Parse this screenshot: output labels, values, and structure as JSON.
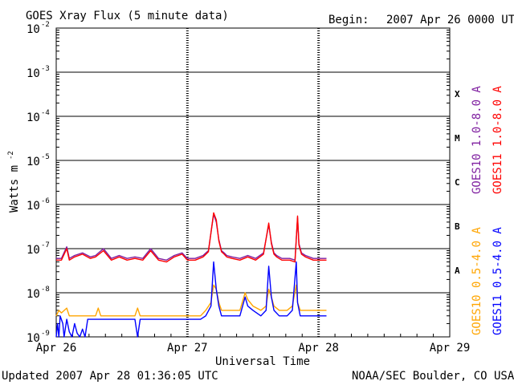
{
  "header": {
    "title": "GOES Xray Flux (5 minute data)",
    "begin_label": "Begin:",
    "begin_value": "2007 Apr 26 0000 UTC"
  },
  "footer": {
    "updated": "Updated 2007 Apr 28 01:36:05 UTC",
    "credit": "NOAA/SEC Boulder, CO USA"
  },
  "colors": {
    "goes10_long": "#7f1fa0",
    "goes11_long": "#ff0000",
    "goes10_short": "#ffa500",
    "goes11_short": "#0000ff"
  },
  "chart_data": {
    "type": "line",
    "title": "GOES Xray Flux (5 minute data)",
    "xlabel": "Universal Time",
    "ylabel": "Watts m",
    "ylabel_superscript": "-2",
    "yscale": "log",
    "ylim": [
      1e-09,
      0.01
    ],
    "xlim": [
      "Apr 26",
      "Apr 29"
    ],
    "x_ticks": [
      "Apr 26",
      "Apr 27",
      "Apr 28",
      "Apr 29"
    ],
    "y_ticks": [
      {
        "base": "10",
        "exp": "-9",
        "value": 1e-09
      },
      {
        "base": "10",
        "exp": "-8",
        "value": 1e-08
      },
      {
        "base": "10",
        "exp": "-7",
        "value": 1e-07
      },
      {
        "base": "10",
        "exp": "-6",
        "value": 1e-06
      },
      {
        "base": "10",
        "exp": "-5",
        "value": 1e-05
      },
      {
        "base": "10",
        "exp": "-4",
        "value": 0.0001
      },
      {
        "base": "10",
        "exp": "-3",
        "value": 0.001
      },
      {
        "base": "10",
        "exp": "-2",
        "value": 0.01
      }
    ],
    "flare_classes": [
      {
        "label": "X",
        "value": 0.00032
      },
      {
        "label": "M",
        "value": 3.2e-05
      },
      {
        "label": "C",
        "value": 3.2e-06
      },
      {
        "label": "B",
        "value": 3.2e-07
      },
      {
        "label": "A",
        "value": 3.2e-08
      }
    ],
    "grid": "horizontal decades, dashed vertical at day boundaries",
    "series": [
      {
        "name": "GOES10 1.0-8.0 A",
        "color": "#7f1fa0",
        "x_days": [
          0.0,
          0.04,
          0.08,
          0.1,
          0.14,
          0.2,
          0.26,
          0.3,
          0.36,
          0.42,
          0.48,
          0.54,
          0.6,
          0.66,
          0.72,
          0.78,
          0.84,
          0.9,
          0.96,
          1.0,
          1.06,
          1.12,
          1.16,
          1.2,
          1.22,
          1.24,
          1.26,
          1.28,
          1.3,
          1.34,
          1.4,
          1.46,
          1.52,
          1.58,
          1.62,
          1.64,
          1.66,
          1.68,
          1.72,
          1.78,
          1.82,
          1.84,
          1.85,
          1.87,
          1.9,
          1.96,
          2.06
        ],
        "values": [
          6e-08,
          6e-08,
          1.1e-07,
          6e-08,
          7e-08,
          8e-08,
          6.5e-08,
          7e-08,
          1e-07,
          6e-08,
          7e-08,
          6e-08,
          6.5e-08,
          6e-08,
          1e-07,
          6e-08,
          5.5e-08,
          7e-08,
          8e-08,
          6e-08,
          6e-08,
          7e-08,
          9e-08,
          6e-07,
          4e-07,
          1.6e-07,
          9e-08,
          8e-08,
          7e-08,
          6.5e-08,
          6e-08,
          7e-08,
          6e-08,
          8e-08,
          3.5e-07,
          1.4e-07,
          8e-08,
          7e-08,
          6e-08,
          6e-08,
          5.5e-08,
          5e-07,
          1.3e-07,
          8e-08,
          7e-08,
          6e-08,
          6e-08
        ]
      },
      {
        "name": "GOES11 1.0-8.0 A",
        "color": "#ff0000",
        "x_days": [
          0.0,
          0.04,
          0.08,
          0.1,
          0.14,
          0.2,
          0.26,
          0.3,
          0.36,
          0.42,
          0.48,
          0.54,
          0.6,
          0.66,
          0.72,
          0.78,
          0.84,
          0.9,
          0.96,
          1.0,
          1.06,
          1.12,
          1.16,
          1.2,
          1.22,
          1.24,
          1.26,
          1.28,
          1.3,
          1.34,
          1.4,
          1.46,
          1.52,
          1.58,
          1.62,
          1.64,
          1.66,
          1.68,
          1.72,
          1.78,
          1.82,
          1.84,
          1.85,
          1.87,
          1.9,
          1.96,
          2.06
        ],
        "values": [
          5.5e-08,
          5.5e-08,
          1e-07,
          5.5e-08,
          6.5e-08,
          7.5e-08,
          6e-08,
          6.5e-08,
          9e-08,
          5.5e-08,
          6.5e-08,
          5.5e-08,
          6e-08,
          5.5e-08,
          9e-08,
          5.5e-08,
          5e-08,
          6.5e-08,
          7.5e-08,
          5.5e-08,
          5.5e-08,
          6.5e-08,
          8.5e-08,
          6.5e-07,
          4.5e-07,
          1.5e-07,
          8.5e-08,
          7.5e-08,
          6.5e-08,
          6e-08,
          5.5e-08,
          6.5e-08,
          5.5e-08,
          7.5e-08,
          3.8e-07,
          1.3e-07,
          7.5e-08,
          6.5e-08,
          5.5e-08,
          5.5e-08,
          5e-08,
          5.5e-07,
          1.2e-07,
          7.5e-08,
          6.5e-08,
          5.5e-08,
          5.5e-08
        ]
      },
      {
        "name": "GOES10 0.5-4.0 A",
        "color": "#ffa500",
        "x_days": [
          0.0,
          0.02,
          0.04,
          0.08,
          0.1,
          0.16,
          0.3,
          0.32,
          0.34,
          0.6,
          0.62,
          0.64,
          0.9,
          1.0,
          1.1,
          1.14,
          1.18,
          1.2,
          1.22,
          1.24,
          1.26,
          1.3,
          1.4,
          1.44,
          1.46,
          1.5,
          1.56,
          1.6,
          1.62,
          1.64,
          1.66,
          1.7,
          1.76,
          1.8,
          1.83,
          1.84,
          1.86,
          1.9,
          1.96,
          2.06
        ],
        "values": [
          3e-09,
          4e-09,
          3.5e-09,
          4.5e-09,
          3e-09,
          3e-09,
          3e-09,
          4.5e-09,
          3e-09,
          3e-09,
          4.5e-09,
          3e-09,
          3e-09,
          3e-09,
          3e-09,
          4e-09,
          6e-09,
          1.5e-08,
          1.2e-08,
          6e-09,
          4e-09,
          4e-09,
          4e-09,
          1e-08,
          7e-09,
          5e-09,
          4e-09,
          5e-09,
          1.2e-08,
          8e-09,
          5e-09,
          4e-09,
          4e-09,
          5e-09,
          1.5e-08,
          6e-09,
          4e-09,
          4e-09,
          4e-09,
          4e-09
        ]
      },
      {
        "name": "GOES11 0.5-4.0 A",
        "color": "#0000ff",
        "x_days": [
          0.0,
          0.01,
          0.02,
          0.03,
          0.05,
          0.06,
          0.08,
          0.1,
          0.12,
          0.14,
          0.16,
          0.18,
          0.2,
          0.22,
          0.24,
          0.3,
          0.4,
          0.5,
          0.6,
          0.62,
          0.64,
          0.7,
          0.8,
          0.9,
          1.0,
          1.06,
          1.1,
          1.14,
          1.18,
          1.2,
          1.22,
          1.24,
          1.26,
          1.3,
          1.4,
          1.44,
          1.46,
          1.5,
          1.56,
          1.6,
          1.62,
          1.64,
          1.66,
          1.7,
          1.76,
          1.8,
          1.83,
          1.84,
          1.86,
          1.9,
          1.96,
          2.06
        ],
        "values": [
          1e-09,
          2e-09,
          1e-09,
          3e-09,
          2e-09,
          1e-09,
          2.5e-09,
          1.3e-09,
          1e-09,
          2e-09,
          1.2e-09,
          1e-09,
          1.5e-09,
          1e-09,
          2.5e-09,
          2.5e-09,
          2.5e-09,
          2.5e-09,
          2.5e-09,
          1e-09,
          2.5e-09,
          2.5e-09,
          2.5e-09,
          2.5e-09,
          2.5e-09,
          2.5e-09,
          2.5e-09,
          3e-09,
          5e-09,
          5e-08,
          1.2e-08,
          5e-09,
          3e-09,
          3e-09,
          3e-09,
          8e-09,
          5e-09,
          4e-09,
          3e-09,
          4e-09,
          4e-08,
          8e-09,
          4e-09,
          3e-09,
          3e-09,
          4e-09,
          5e-08,
          6e-09,
          3e-09,
          3e-09,
          3e-09,
          3e-09
        ]
      }
    ]
  }
}
